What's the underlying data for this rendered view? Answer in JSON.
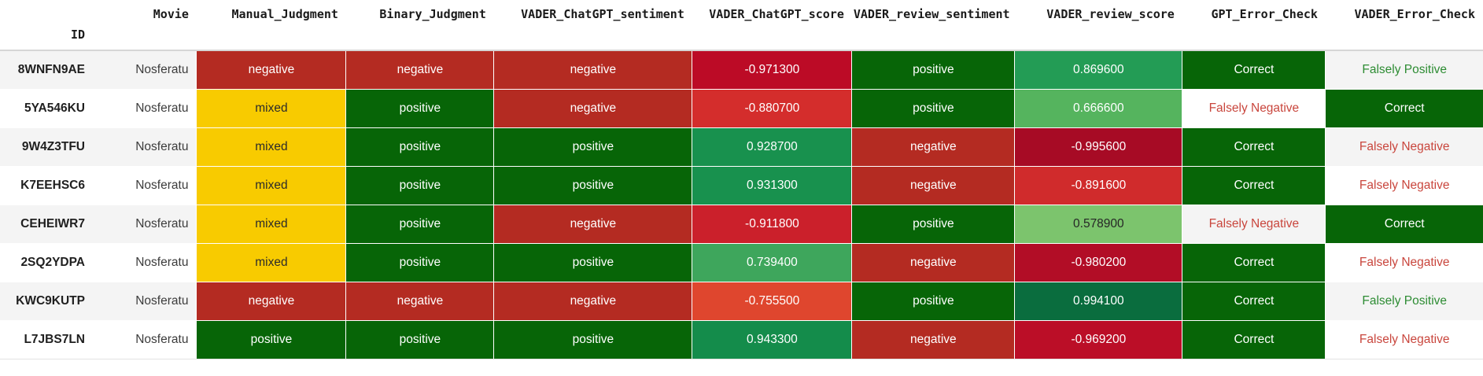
{
  "table": {
    "index_name": "ID",
    "columns": [
      "Movie",
      "Manual_Judgment",
      "Binary_Judgment",
      "VADER_ChatGPT_sentiment",
      "VADER_ChatGPT_score",
      "VADER_review_sentiment",
      "VADER_review_score",
      "GPT_Error_Check",
      "VADER_Error_Check"
    ],
    "palette": {
      "categorical_negative_bg": "#b42b22",
      "categorical_positive_bg": "#076507",
      "categorical_mixed_bg": "#f8cb00",
      "correct_bg": "#076507",
      "falsely_negative_text": "#c9463d",
      "falsely_positive_text": "#2d8c33",
      "white_text": "#ffffff",
      "dark_text": "#2b2b2b"
    },
    "rows": [
      {
        "id": "8WNFN9AE",
        "movie": "Nosferatu",
        "manual": {
          "text": "negative",
          "bg": "#b42b22",
          "fg": "#ffffff"
        },
        "binary": {
          "text": "negative",
          "bg": "#b42b22",
          "fg": "#ffffff"
        },
        "vcg_sent": {
          "text": "negative",
          "bg": "#b42b22",
          "fg": "#ffffff"
        },
        "vcg_score": {
          "text": "-0.971300",
          "bg": "#bc0b26",
          "fg": "#ffffff"
        },
        "vr_sent": {
          "text": "positive",
          "bg": "#076507",
          "fg": "#ffffff"
        },
        "vr_score": {
          "text": "0.869600",
          "bg": "#239c55",
          "fg": "#ffffff"
        },
        "gpt_check": {
          "text": "Correct",
          "bg": "#076507",
          "fg": "#ffffff"
        },
        "vader_check": {
          "text": "Falsely Positive",
          "bg": "",
          "fg": "#2d8c33"
        }
      },
      {
        "id": "5YA546KU",
        "movie": "Nosferatu",
        "manual": {
          "text": "mixed",
          "bg": "#f8cb00",
          "fg": "#2b2b2b"
        },
        "binary": {
          "text": "positive",
          "bg": "#076507",
          "fg": "#ffffff"
        },
        "vcg_sent": {
          "text": "negative",
          "bg": "#b42b22",
          "fg": "#ffffff"
        },
        "vcg_score": {
          "text": "-0.880700",
          "bg": "#d42d2c",
          "fg": "#ffffff"
        },
        "vr_sent": {
          "text": "positive",
          "bg": "#076507",
          "fg": "#ffffff"
        },
        "vr_score": {
          "text": "0.666600",
          "bg": "#55b45e",
          "fg": "#ffffff"
        },
        "gpt_check": {
          "text": "Falsely Negative",
          "bg": "",
          "fg": "#c9463d"
        },
        "vader_check": {
          "text": "Correct",
          "bg": "#076507",
          "fg": "#ffffff"
        }
      },
      {
        "id": "9W4Z3TFU",
        "movie": "Nosferatu",
        "manual": {
          "text": "mixed",
          "bg": "#f8cb00",
          "fg": "#2b2b2b"
        },
        "binary": {
          "text": "positive",
          "bg": "#076507",
          "fg": "#ffffff"
        },
        "vcg_sent": {
          "text": "positive",
          "bg": "#076507",
          "fg": "#ffffff"
        },
        "vcg_score": {
          "text": "0.928700",
          "bg": "#18914e",
          "fg": "#ffffff"
        },
        "vr_sent": {
          "text": "negative",
          "bg": "#b42b22",
          "fg": "#ffffff"
        },
        "vr_score": {
          "text": "-0.995600",
          "bg": "#a70b25",
          "fg": "#ffffff"
        },
        "gpt_check": {
          "text": "Correct",
          "bg": "#076507",
          "fg": "#ffffff"
        },
        "vader_check": {
          "text": "Falsely Negative",
          "bg": "",
          "fg": "#c9463d"
        }
      },
      {
        "id": "K7EEHSC6",
        "movie": "Nosferatu",
        "manual": {
          "text": "mixed",
          "bg": "#f8cb00",
          "fg": "#2b2b2b"
        },
        "binary": {
          "text": "positive",
          "bg": "#076507",
          "fg": "#ffffff"
        },
        "vcg_sent": {
          "text": "positive",
          "bg": "#076507",
          "fg": "#ffffff"
        },
        "vcg_score": {
          "text": "0.931300",
          "bg": "#18914e",
          "fg": "#ffffff"
        },
        "vr_sent": {
          "text": "negative",
          "bg": "#b42b22",
          "fg": "#ffffff"
        },
        "vr_score": {
          "text": "-0.891600",
          "bg": "#d02b2c",
          "fg": "#ffffff"
        },
        "gpt_check": {
          "text": "Correct",
          "bg": "#076507",
          "fg": "#ffffff"
        },
        "vader_check": {
          "text": "Falsely Negative",
          "bg": "",
          "fg": "#c9463d"
        }
      },
      {
        "id": "CEHEIWR7",
        "movie": "Nosferatu",
        "manual": {
          "text": "mixed",
          "bg": "#f8cb00",
          "fg": "#2b2b2b"
        },
        "binary": {
          "text": "positive",
          "bg": "#076507",
          "fg": "#ffffff"
        },
        "vcg_sent": {
          "text": "negative",
          "bg": "#b42b22",
          "fg": "#ffffff"
        },
        "vcg_score": {
          "text": "-0.911800",
          "bg": "#cb202b",
          "fg": "#ffffff"
        },
        "vr_sent": {
          "text": "positive",
          "bg": "#076507",
          "fg": "#ffffff"
        },
        "vr_score": {
          "text": "0.578900",
          "bg": "#7cc46d",
          "fg": "#262626"
        },
        "gpt_check": {
          "text": "Falsely Negative",
          "bg": "",
          "fg": "#c9463d"
        },
        "vader_check": {
          "text": "Correct",
          "bg": "#076507",
          "fg": "#ffffff"
        }
      },
      {
        "id": "2SQ2YDPA",
        "movie": "Nosferatu",
        "manual": {
          "text": "mixed",
          "bg": "#f8cb00",
          "fg": "#2b2b2b"
        },
        "binary": {
          "text": "positive",
          "bg": "#076507",
          "fg": "#ffffff"
        },
        "vcg_sent": {
          "text": "positive",
          "bg": "#076507",
          "fg": "#ffffff"
        },
        "vcg_score": {
          "text": "0.739400",
          "bg": "#3ea65c",
          "fg": "#ffffff"
        },
        "vr_sent": {
          "text": "negative",
          "bg": "#b42b22",
          "fg": "#ffffff"
        },
        "vr_score": {
          "text": "-0.980200",
          "bg": "#b20d26",
          "fg": "#ffffff"
        },
        "gpt_check": {
          "text": "Correct",
          "bg": "#076507",
          "fg": "#ffffff"
        },
        "vader_check": {
          "text": "Falsely Negative",
          "bg": "",
          "fg": "#c9463d"
        }
      },
      {
        "id": "KWC9KUTP",
        "movie": "Nosferatu",
        "manual": {
          "text": "negative",
          "bg": "#b42b22",
          "fg": "#ffffff"
        },
        "binary": {
          "text": "negative",
          "bg": "#b42b22",
          "fg": "#ffffff"
        },
        "vcg_sent": {
          "text": "negative",
          "bg": "#b42b22",
          "fg": "#ffffff"
        },
        "vcg_score": {
          "text": "-0.755500",
          "bg": "#df462e",
          "fg": "#ffffff"
        },
        "vr_sent": {
          "text": "positive",
          "bg": "#076507",
          "fg": "#ffffff"
        },
        "vr_score": {
          "text": "0.994100",
          "bg": "#0a6d3e",
          "fg": "#ffffff"
        },
        "gpt_check": {
          "text": "Correct",
          "bg": "#076507",
          "fg": "#ffffff"
        },
        "vader_check": {
          "text": "Falsely Positive",
          "bg": "",
          "fg": "#2d8c33"
        }
      },
      {
        "id": "L7JBS7LN",
        "movie": "Nosferatu",
        "manual": {
          "text": "positive",
          "bg": "#076507",
          "fg": "#ffffff"
        },
        "binary": {
          "text": "positive",
          "bg": "#076507",
          "fg": "#ffffff"
        },
        "vcg_sent": {
          "text": "positive",
          "bg": "#076507",
          "fg": "#ffffff"
        },
        "vcg_score": {
          "text": "0.943300",
          "bg": "#148c4b",
          "fg": "#ffffff"
        },
        "vr_sent": {
          "text": "negative",
          "bg": "#b42b22",
          "fg": "#ffffff"
        },
        "vr_score": {
          "text": "-0.969200",
          "bg": "#bb0e27",
          "fg": "#ffffff"
        },
        "gpt_check": {
          "text": "Correct",
          "bg": "#076507",
          "fg": "#ffffff"
        },
        "vader_check": {
          "text": "Falsely Negative",
          "bg": "",
          "fg": "#c9463d"
        }
      }
    ]
  }
}
